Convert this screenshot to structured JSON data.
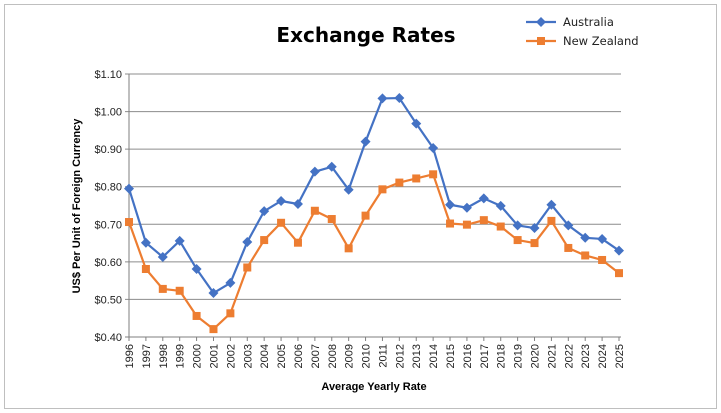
{
  "chart_data": {
    "type": "line",
    "title": "Exchange Rates",
    "xlabel": "Average Yearly Rate",
    "ylabel": "US$ Per Unit of Foreign Currency",
    "ylim": [
      0.4,
      1.1
    ],
    "ytick_step": 0.1,
    "ytick_labels": [
      "$0.40",
      "$0.50",
      "$0.60",
      "$0.70",
      "$0.80",
      "$0.90",
      "$1.00",
      "$1.10"
    ],
    "grid": true,
    "legend": "top-right",
    "categories": [
      "1996",
      "1997",
      "1998",
      "1999",
      "2000",
      "2001",
      "2002",
      "2003",
      "2004",
      "2005",
      "2006",
      "2007",
      "2008",
      "2009",
      "2010",
      "2011",
      "2012",
      "2013",
      "2014",
      "2015",
      "2016",
      "2017",
      "2018",
      "2019",
      "2020",
      "2021",
      "2022",
      "2023",
      "2024",
      "2025"
    ],
    "series": [
      {
        "name": "Australia",
        "color": "#4472C4",
        "marker": "diamond",
        "values": [
          0.795,
          0.651,
          0.613,
          0.656,
          0.581,
          0.517,
          0.544,
          0.653,
          0.735,
          0.762,
          0.754,
          0.84,
          0.853,
          0.792,
          0.92,
          1.035,
          1.036,
          0.968,
          0.903,
          0.752,
          0.744,
          0.769,
          0.749,
          0.697,
          0.69,
          0.752,
          0.697,
          0.664,
          0.661,
          0.63
        ]
      },
      {
        "name": "New Zealand",
        "color": "#ED7D31",
        "marker": "square",
        "values": [
          0.706,
          0.581,
          0.528,
          0.523,
          0.456,
          0.421,
          0.463,
          0.585,
          0.658,
          0.704,
          0.651,
          0.736,
          0.714,
          0.636,
          0.723,
          0.793,
          0.811,
          0.822,
          0.833,
          0.702,
          0.699,
          0.711,
          0.694,
          0.658,
          0.65,
          0.709,
          0.637,
          0.617,
          0.605,
          0.57
        ]
      }
    ]
  }
}
